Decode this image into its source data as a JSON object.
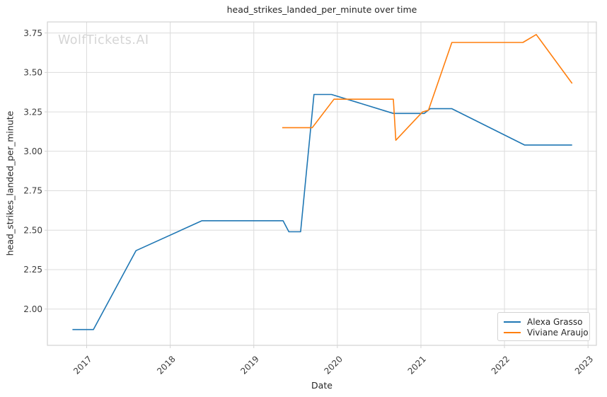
{
  "watermark": "WolfTickets.AI",
  "chart_data": {
    "type": "line",
    "title": "head_strikes_landed_per_minute over time",
    "xlabel": "Date",
    "ylabel": "head_strikes_landed_per_minute",
    "xlim": [
      2016.53,
      2023.1
    ],
    "ylim": [
      1.77,
      3.82
    ],
    "xticks": [
      "2017",
      "2018",
      "2019",
      "2020",
      "2021",
      "2022",
      "2023"
    ],
    "yticks": [
      "2.00",
      "2.25",
      "2.50",
      "2.75",
      "3.00",
      "3.25",
      "3.50",
      "3.75"
    ],
    "grid": true,
    "grid_color": "#dcdcdc",
    "axes_edge_color": "#d3d3d3",
    "legend_position": "lower right",
    "x_axis_unit": "year",
    "series": [
      {
        "name": "Alexa Grasso",
        "color": "#1f77b4",
        "points": [
          [
            2016.83,
            1.87
          ],
          [
            2017.08,
            1.87
          ],
          [
            2017.59,
            2.37
          ],
          [
            2018.38,
            2.56
          ],
          [
            2019.35,
            2.56
          ],
          [
            2019.42,
            2.49
          ],
          [
            2019.56,
            2.49
          ],
          [
            2019.72,
            3.36
          ],
          [
            2019.93,
            3.36
          ],
          [
            2020.67,
            3.24
          ],
          [
            2021.04,
            3.24
          ],
          [
            2021.11,
            3.27
          ],
          [
            2021.37,
            3.27
          ],
          [
            2022.24,
            3.04
          ],
          [
            2022.81,
            3.04
          ]
        ]
      },
      {
        "name": "Viviane Araujo",
        "color": "#ff7f0e",
        "points": [
          [
            2019.34,
            3.15
          ],
          [
            2019.7,
            3.15
          ],
          [
            2019.96,
            3.33
          ],
          [
            2020.67,
            3.33
          ],
          [
            2020.7,
            3.07
          ],
          [
            2021.02,
            3.25
          ],
          [
            2021.09,
            3.26
          ],
          [
            2021.37,
            3.69
          ],
          [
            2022.22,
            3.69
          ],
          [
            2022.38,
            3.74
          ],
          [
            2022.81,
            3.43
          ]
        ]
      }
    ]
  }
}
